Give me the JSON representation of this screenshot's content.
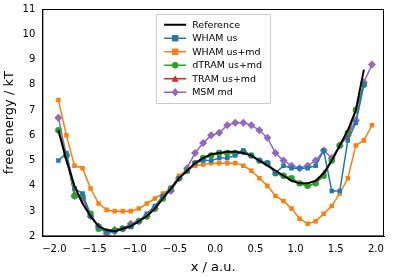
{
  "chart_data": {
    "type": "line",
    "x_label": "x / a.u.",
    "y_label": "free energy / kT",
    "x": [
      -1.95,
      -1.85,
      -1.75,
      -1.65,
      -1.55,
      -1.45,
      -1.35,
      -1.25,
      -1.15,
      -1.05,
      -0.95,
      -0.85,
      -0.75,
      -0.65,
      -0.55,
      -0.45,
      -0.35,
      -0.25,
      -0.15,
      -0.05,
      0.05,
      0.15,
      0.25,
      0.35,
      0.45,
      0.55,
      0.65,
      0.75,
      0.85,
      0.95,
      1.05,
      1.15,
      1.25,
      1.35,
      1.45,
      1.55,
      1.65,
      1.75,
      1.85,
      1.95
    ],
    "series": [
      {
        "name": "Reference",
        "color": "#000000",
        "marker": "none",
        "line_style": "solid",
        "values": [
          6.2,
          5.0,
          4.0,
          3.3,
          2.8,
          2.4,
          2.25,
          2.2,
          2.3,
          2.4,
          2.6,
          2.8,
          3.1,
          3.5,
          3.9,
          4.3,
          4.6,
          4.9,
          5.1,
          5.25,
          5.3,
          5.35,
          5.35,
          5.3,
          5.2,
          5.0,
          4.8,
          4.6,
          4.4,
          4.2,
          4.1,
          4.1,
          4.2,
          4.5,
          5.0,
          5.6,
          6.2,
          7.0,
          8.6,
          null
        ]
      },
      {
        "name": "WHAM us",
        "color": "#1f77b4",
        "marker": "square",
        "line_style": "solid",
        "values": [
          5.0,
          5.3,
          3.9,
          3.7,
          2.8,
          2.4,
          2.2,
          2.2,
          2.3,
          2.4,
          2.6,
          2.9,
          3.2,
          3.6,
          3.9,
          4.3,
          4.6,
          4.9,
          5.0,
          5.0,
          5.1,
          5.1,
          5.2,
          5.4,
          5.2,
          5.0,
          4.9,
          4.5,
          4.8,
          4.7,
          4.7,
          4.7,
          4.8,
          5.4,
          3.8,
          3.8,
          5.8,
          6.5,
          8.0,
          null
        ]
      },
      {
        "name": "WHAM us+md",
        "color": "#ff7f0e",
        "marker": "square",
        "line_style": "solid",
        "values": [
          7.4,
          6.0,
          4.8,
          4.7,
          3.9,
          3.3,
          3.05,
          3.0,
          3.0,
          3.0,
          3.1,
          3.3,
          3.5,
          3.7,
          3.9,
          4.4,
          4.6,
          4.8,
          4.85,
          4.9,
          4.9,
          4.9,
          4.9,
          4.8,
          4.6,
          4.3,
          4.0,
          3.6,
          3.4,
          3.1,
          2.7,
          2.5,
          2.6,
          2.9,
          3.2,
          3.7,
          4.3,
          5.6,
          5.8,
          6.4
        ]
      },
      {
        "name": "dTRAM us+md",
        "color": "#2ca02c",
        "marker": "circle",
        "line_style": "solid",
        "values": [
          6.2,
          5.2,
          3.6,
          3.6,
          2.9,
          2.3,
          2.2,
          2.25,
          2.3,
          2.4,
          2.6,
          2.8,
          3.1,
          3.5,
          3.9,
          4.3,
          4.6,
          4.9,
          5.1,
          5.2,
          5.3,
          5.3,
          5.3,
          5.35,
          5.2,
          5.0,
          4.9,
          4.5,
          4.4,
          4.3,
          4.1,
          4.0,
          4.1,
          4.4,
          5.0,
          5.6,
          6.1,
          7.0,
          8.0,
          null
        ]
      },
      {
        "name": "TRAM us+md",
        "color": "#d62728",
        "marker": "triangle",
        "line_style": "solid",
        "values": [
          6.2,
          5.2,
          3.7,
          3.6,
          2.8,
          2.4,
          2.2,
          2.3,
          2.3,
          2.45,
          2.6,
          2.8,
          3.1,
          3.5,
          3.9,
          4.3,
          4.6,
          4.9,
          5.1,
          5.2,
          5.3,
          5.3,
          5.3,
          5.35,
          5.2,
          5.0,
          4.9,
          4.5,
          4.4,
          4.3,
          4.1,
          4.0,
          4.1,
          4.5,
          5.0,
          5.6,
          6.0,
          7.0,
          8.0,
          null
        ]
      },
      {
        "name": "MSM md",
        "color": "#9467bd",
        "marker": "diamond",
        "line_style": "solid",
        "values": [
          6.7,
          5.2,
          3.6,
          3.5,
          2.8,
          2.4,
          2.1,
          2.2,
          2.3,
          2.5,
          2.6,
          2.8,
          3.1,
          3.6,
          3.8,
          4.3,
          4.7,
          5.3,
          5.7,
          6.0,
          6.1,
          6.4,
          6.5,
          6.5,
          6.4,
          6.2,
          5.9,
          5.3,
          5.0,
          4.8,
          4.7,
          4.8,
          5.0,
          5.4,
          5.1,
          5.6,
          6.0,
          6.6,
          8.1,
          8.8
        ]
      }
    ],
    "xlim": [
      -2.15,
      2.1
    ],
    "xticks": [
      {
        "value": -2,
        "label": "−2.0"
      },
      {
        "value": -1.5,
        "label": "−1.5"
      },
      {
        "value": -1,
        "label": "−1.0"
      },
      {
        "value": -0.5,
        "label": "−0.5"
      },
      {
        "value": 0,
        "label": "0.0"
      },
      {
        "value": 0.5,
        "label": "0.5"
      },
      {
        "value": 1,
        "label": "1.0"
      },
      {
        "value": 1.5,
        "label": "1.5"
      },
      {
        "value": 2,
        "label": "2.0"
      }
    ],
    "ylim": [
      2,
      11
    ],
    "yticks": [
      2,
      3,
      4,
      5,
      6,
      7,
      8,
      9,
      10,
      11
    ],
    "grid": false,
    "legend": "upper center"
  }
}
